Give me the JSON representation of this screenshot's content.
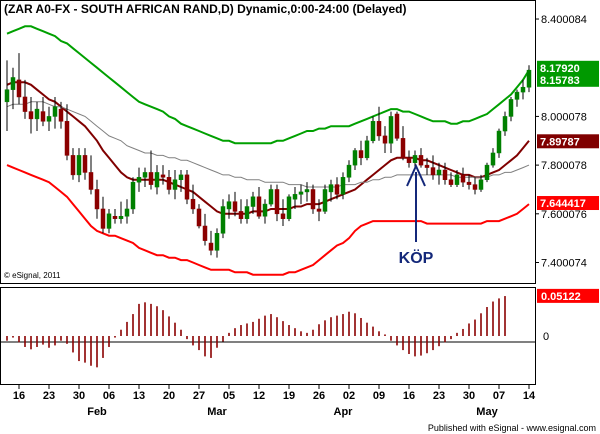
{
  "chart_data": {
    "type": "candlestick",
    "title": "(ZAR A0-FX - SOUTH AFRICAN RAND,D) Dynamic,0:00-24:00 (Delayed)",
    "watermark": "© eSignal, 2011",
    "footer": "Published with eSignal - www.esignal.com",
    "annotation": {
      "text": "KÖP",
      "date": "Apr 16"
    },
    "price_axis": {
      "ticks": [
        "8.400084",
        "8.000078",
        "7.800078",
        "7.600076",
        "7.400074"
      ],
      "ylim": [
        7.32,
        8.47
      ],
      "tags": [
        {
          "text": "8.17920",
          "value": 8.1792,
          "color": "#009900"
        },
        {
          "text": "8.15783",
          "value": 8.1578,
          "color": "#009900"
        },
        {
          "text": "7.89787",
          "value": 7.8979,
          "color": "#800000"
        },
        {
          "text": "7.644417",
          "value": 7.6444,
          "color": "#ff0000"
        }
      ]
    },
    "oscillator_axis": {
      "ticks": [
        "0"
      ],
      "ylim": [
        -0.06,
        0.06
      ],
      "tag": {
        "text": "0.05122",
        "value": 0.05122,
        "color": "#ff0000"
      }
    },
    "x_ticks": [
      {
        "i": 2,
        "t": "16"
      },
      {
        "i": 7,
        "t": "23"
      },
      {
        "i": 12,
        "t": "30"
      },
      {
        "i": 17,
        "t": "06"
      },
      {
        "i": 22,
        "t": "13"
      },
      {
        "i": 27,
        "t": "20"
      },
      {
        "i": 32,
        "t": "27"
      },
      {
        "i": 37,
        "t": "05"
      },
      {
        "i": 42,
        "t": "12"
      },
      {
        "i": 47,
        "t": "19"
      },
      {
        "i": 52,
        "t": "26"
      },
      {
        "i": 57,
        "t": "02"
      },
      {
        "i": 62,
        "t": "09"
      },
      {
        "i": 67,
        "t": "16"
      },
      {
        "i": 72,
        "t": "23"
      },
      {
        "i": 77,
        "t": "30"
      },
      {
        "i": 82,
        "t": "07"
      },
      {
        "i": 87,
        "t": "14"
      }
    ],
    "months": [
      {
        "i": 15,
        "t": "Feb"
      },
      {
        "i": 35,
        "t": "Mar"
      },
      {
        "i": 56,
        "t": "Apr"
      },
      {
        "i": 80,
        "t": "May"
      }
    ],
    "ohlc": [
      [
        8.06,
        8.23,
        7.94,
        8.11
      ],
      [
        8.11,
        8.2,
        8.03,
        8.16
      ],
      [
        8.15,
        8.26,
        8.05,
        8.08
      ],
      [
        8.08,
        8.15,
        7.99,
        8.02
      ],
      [
        8.02,
        8.08,
        7.93,
        7.99
      ],
      [
        7.99,
        8.06,
        7.94,
        8.03
      ],
      [
        8.02,
        8.08,
        7.96,
        7.98
      ],
      [
        7.98,
        8.04,
        7.94,
        8.0
      ],
      [
        8.0,
        8.08,
        7.95,
        8.04
      ],
      [
        8.03,
        8.06,
        7.95,
        7.98
      ],
      [
        7.98,
        8.05,
        7.82,
        7.84
      ],
      [
        7.84,
        7.87,
        7.74,
        7.76
      ],
      [
        7.76,
        7.87,
        7.73,
        7.84
      ],
      [
        7.84,
        7.87,
        7.74,
        7.77
      ],
      [
        7.77,
        7.84,
        7.68,
        7.7
      ],
      [
        7.7,
        7.74,
        7.58,
        7.62
      ],
      [
        7.62,
        7.67,
        7.52,
        7.54
      ],
      [
        7.54,
        7.62,
        7.52,
        7.6
      ],
      [
        7.59,
        7.62,
        7.56,
        7.58
      ],
      [
        7.58,
        7.65,
        7.56,
        7.59
      ],
      [
        7.59,
        7.66,
        7.56,
        7.62
      ],
      [
        7.62,
        7.75,
        7.6,
        7.73
      ],
      [
        7.73,
        7.79,
        7.69,
        7.75
      ],
      [
        7.75,
        7.79,
        7.71,
        7.77
      ],
      [
        7.77,
        7.86,
        7.7,
        7.72
      ],
      [
        7.71,
        7.8,
        7.68,
        7.77
      ],
      [
        7.76,
        7.8,
        7.72,
        7.75
      ],
      [
        7.75,
        7.78,
        7.68,
        7.7
      ],
      [
        7.7,
        7.78,
        7.66,
        7.74
      ],
      [
        7.74,
        7.78,
        7.69,
        7.76
      ],
      [
        7.76,
        7.78,
        7.64,
        7.66
      ],
      [
        7.66,
        7.72,
        7.6,
        7.62
      ],
      [
        7.62,
        7.64,
        7.54,
        7.55
      ],
      [
        7.55,
        7.6,
        7.47,
        7.49
      ],
      [
        7.48,
        7.53,
        7.43,
        7.45
      ],
      [
        7.45,
        7.54,
        7.42,
        7.52
      ],
      [
        7.52,
        7.66,
        7.5,
        7.63
      ],
      [
        7.62,
        7.68,
        7.58,
        7.65
      ],
      [
        7.65,
        7.69,
        7.59,
        7.61
      ],
      [
        7.61,
        7.66,
        7.56,
        7.58
      ],
      [
        7.58,
        7.66,
        7.56,
        7.63
      ],
      [
        7.63,
        7.69,
        7.6,
        7.67
      ],
      [
        7.67,
        7.71,
        7.58,
        7.59
      ],
      [
        7.59,
        7.66,
        7.56,
        7.64
      ],
      [
        7.64,
        7.72,
        7.63,
        7.7
      ],
      [
        7.7,
        7.72,
        7.57,
        7.6
      ],
      [
        7.6,
        7.66,
        7.55,
        7.58
      ],
      [
        7.58,
        7.68,
        7.57,
        7.67
      ],
      [
        7.66,
        7.71,
        7.62,
        7.68
      ],
      [
        7.68,
        7.72,
        7.64,
        7.69
      ],
      [
        7.69,
        7.73,
        7.65,
        7.7
      ],
      [
        7.7,
        7.72,
        7.6,
        7.62
      ],
      [
        7.62,
        7.66,
        7.57,
        7.61
      ],
      [
        7.61,
        7.72,
        7.6,
        7.7
      ],
      [
        7.69,
        7.74,
        7.65,
        7.72
      ],
      [
        7.72,
        7.75,
        7.66,
        7.68
      ],
      [
        7.68,
        7.77,
        7.66,
        7.75
      ],
      [
        7.75,
        7.82,
        7.73,
        7.8
      ],
      [
        7.8,
        7.87,
        7.78,
        7.86
      ],
      [
        7.86,
        7.9,
        7.8,
        7.83
      ],
      [
        7.83,
        7.92,
        7.82,
        7.9
      ],
      [
        7.9,
        8.0,
        7.89,
        7.98
      ],
      [
        7.98,
        8.04,
        7.9,
        7.92
      ],
      [
        7.92,
        7.96,
        7.85,
        7.89
      ],
      [
        7.89,
        8.02,
        7.85,
        8.0
      ],
      [
        8.01,
        8.02,
        7.9,
        7.91
      ],
      [
        7.91,
        7.96,
        7.82,
        7.83
      ],
      [
        7.83,
        7.86,
        7.79,
        7.81
      ],
      [
        7.81,
        7.86,
        7.79,
        7.84
      ],
      [
        7.84,
        7.87,
        7.79,
        7.8
      ],
      [
        7.8,
        7.83,
        7.76,
        7.79
      ],
      [
        7.79,
        7.84,
        7.74,
        7.76
      ],
      [
        7.76,
        7.81,
        7.72,
        7.78
      ],
      [
        7.78,
        7.81,
        7.72,
        7.74
      ],
      [
        7.74,
        7.77,
        7.71,
        7.72
      ],
      [
        7.72,
        7.78,
        7.71,
        7.76
      ],
      [
        7.76,
        7.79,
        7.71,
        7.73
      ],
      [
        7.73,
        7.76,
        7.7,
        7.72
      ],
      [
        7.72,
        7.75,
        7.68,
        7.7
      ],
      [
        7.7,
        7.76,
        7.69,
        7.74
      ],
      [
        7.74,
        7.81,
        7.73,
        7.8
      ],
      [
        7.8,
        7.87,
        7.79,
        7.85
      ],
      [
        7.85,
        7.95,
        7.83,
        7.94
      ],
      [
        7.94,
        8.02,
        7.92,
        8.0
      ],
      [
        8.0,
        8.08,
        7.98,
        8.07
      ],
      [
        8.07,
        8.11,
        8.04,
        8.1
      ],
      [
        8.1,
        8.15,
        8.07,
        8.12
      ],
      [
        8.12,
        8.21,
        8.1,
        8.19
      ]
    ],
    "series": [
      {
        "name": "Upper band",
        "color": "#00a000",
        "values": [
          8.34,
          8.35,
          8.36,
          8.37,
          8.37,
          8.36,
          8.35,
          8.34,
          8.33,
          8.31,
          8.3,
          8.28,
          8.26,
          8.24,
          8.22,
          8.2,
          8.18,
          8.16,
          8.14,
          8.12,
          8.1,
          8.08,
          8.06,
          8.05,
          8.04,
          8.03,
          8.02,
          8.0,
          7.99,
          7.97,
          7.96,
          7.95,
          7.94,
          7.93,
          7.92,
          7.91,
          7.9,
          7.9,
          7.89,
          7.89,
          7.89,
          7.89,
          7.89,
          7.89,
          7.89,
          7.9,
          7.9,
          7.91,
          7.92,
          7.93,
          7.94,
          7.94,
          7.95,
          7.95,
          7.96,
          7.96,
          7.96,
          7.96,
          7.97,
          7.98,
          7.99,
          8.0,
          8.01,
          8.02,
          8.03,
          8.03,
          8.02,
          8.02,
          8.01,
          8.0,
          7.99,
          7.98,
          7.98,
          7.98,
          7.97,
          7.97,
          7.98,
          7.98,
          7.99,
          8.0,
          8.01,
          8.03,
          8.05,
          8.07,
          8.09,
          8.12,
          8.15,
          8.19
        ]
      },
      {
        "name": "Moving average",
        "color": "#800000",
        "values": [
          8.13,
          8.14,
          8.14,
          8.14,
          8.13,
          8.11,
          8.09,
          8.07,
          8.06,
          8.04,
          8.02,
          8.0,
          7.98,
          7.96,
          7.93,
          7.9,
          7.86,
          7.83,
          7.8,
          7.77,
          7.75,
          7.74,
          7.74,
          7.74,
          7.74,
          7.74,
          7.74,
          7.73,
          7.72,
          7.71,
          7.7,
          7.69,
          7.67,
          7.65,
          7.63,
          7.61,
          7.6,
          7.6,
          7.6,
          7.6,
          7.6,
          7.61,
          7.61,
          7.61,
          7.62,
          7.62,
          7.62,
          7.62,
          7.63,
          7.63,
          7.64,
          7.64,
          7.64,
          7.65,
          7.66,
          7.67,
          7.68,
          7.69,
          7.7,
          7.72,
          7.74,
          7.76,
          7.78,
          7.8,
          7.82,
          7.83,
          7.83,
          7.83,
          7.83,
          7.82,
          7.82,
          7.81,
          7.8,
          7.79,
          7.78,
          7.77,
          7.76,
          7.76,
          7.75,
          7.75,
          7.76,
          7.77,
          7.78,
          7.8,
          7.82,
          7.84,
          7.87,
          7.9
        ]
      },
      {
        "name": "Long average",
        "color": "#808080",
        "values": [
          8.04,
          8.05,
          8.05,
          8.05,
          8.06,
          8.06,
          8.06,
          8.05,
          8.04,
          8.04,
          8.03,
          8.02,
          8.01,
          8.0,
          7.98,
          7.96,
          7.94,
          7.92,
          7.91,
          7.9,
          7.88,
          7.87,
          7.86,
          7.85,
          7.85,
          7.84,
          7.84,
          7.83,
          7.83,
          7.82,
          7.82,
          7.81,
          7.8,
          7.79,
          7.78,
          7.77,
          7.76,
          7.76,
          7.75,
          7.75,
          7.74,
          7.74,
          7.74,
          7.73,
          7.73,
          7.73,
          7.73,
          7.72,
          7.72,
          7.72,
          7.71,
          7.71,
          7.71,
          7.71,
          7.71,
          7.71,
          7.72,
          7.72,
          7.72,
          7.73,
          7.73,
          7.74,
          7.74,
          7.75,
          7.75,
          7.76,
          7.76,
          7.76,
          7.76,
          7.76,
          7.76,
          7.76,
          7.76,
          7.76,
          7.76,
          7.75,
          7.75,
          7.75,
          7.75,
          7.75,
          7.75,
          7.76,
          7.76,
          7.77,
          7.77,
          7.78,
          7.79,
          7.8
        ]
      },
      {
        "name": "Lower band",
        "color": "#ff0000",
        "values": [
          7.8,
          7.79,
          7.78,
          7.77,
          7.76,
          7.75,
          7.74,
          7.73,
          7.71,
          7.69,
          7.67,
          7.64,
          7.61,
          7.58,
          7.55,
          7.53,
          7.52,
          7.51,
          7.51,
          7.5,
          7.49,
          7.48,
          7.46,
          7.45,
          7.44,
          7.43,
          7.43,
          7.42,
          7.42,
          7.41,
          7.41,
          7.4,
          7.39,
          7.38,
          7.37,
          7.37,
          7.37,
          7.37,
          7.36,
          7.36,
          7.36,
          7.35,
          7.35,
          7.35,
          7.35,
          7.35,
          7.35,
          7.36,
          7.36,
          7.37,
          7.38,
          7.39,
          7.41,
          7.43,
          7.45,
          7.47,
          7.48,
          7.5,
          7.53,
          7.55,
          7.56,
          7.57,
          7.57,
          7.57,
          7.57,
          7.57,
          7.57,
          7.57,
          7.57,
          7.57,
          7.56,
          7.56,
          7.56,
          7.56,
          7.56,
          7.56,
          7.56,
          7.56,
          7.56,
          7.56,
          7.57,
          7.57,
          7.57,
          7.58,
          7.59,
          7.6,
          7.62,
          7.64
        ]
      }
    ],
    "oscillator": [
      -0.006,
      -0.002,
      -0.008,
      -0.014,
      -0.017,
      -0.014,
      -0.011,
      -0.015,
      -0.012,
      -0.006,
      -0.01,
      -0.021,
      -0.032,
      -0.034,
      -0.038,
      -0.04,
      -0.028,
      -0.014,
      -0.002,
      0.008,
      0.018,
      0.028,
      0.041,
      0.043,
      0.041,
      0.038,
      0.033,
      0.025,
      0.017,
      0.008,
      -0.004,
      -0.012,
      -0.018,
      -0.026,
      -0.028,
      -0.015,
      -0.007,
      0.004,
      0.01,
      0.014,
      0.016,
      0.018,
      0.022,
      0.026,
      0.028,
      0.024,
      0.019,
      0.014,
      0.01,
      0.006,
      0.004,
      0.008,
      0.015,
      0.02,
      0.024,
      0.026,
      0.028,
      0.031,
      0.029,
      0.023,
      0.017,
      0.012,
      0.006,
      0.002,
      -0.006,
      -0.012,
      -0.018,
      -0.023,
      -0.026,
      -0.025,
      -0.022,
      -0.018,
      -0.013,
      -0.008,
      -0.004,
      0.004,
      0.009,
      0.016,
      0.021,
      0.029,
      0.037,
      0.044,
      0.048,
      0.051
    ]
  }
}
